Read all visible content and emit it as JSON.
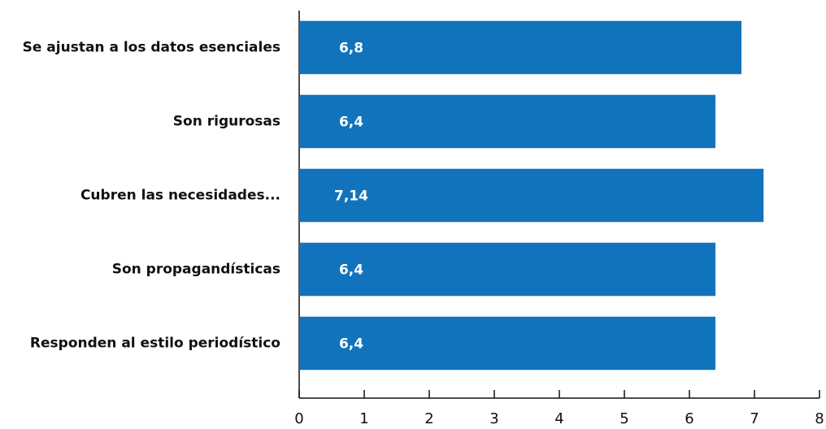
{
  "chart_data": {
    "type": "bar",
    "orientation": "horizontal",
    "categories": [
      "Se ajustan a los datos esenciales",
      "Son rigurosas",
      "Cubren las necesidades...",
      "Son propagandísticas",
      "Responden al estilo periodístico"
    ],
    "values": [
      6.8,
      6.4,
      7.14,
      6.4,
      6.4
    ],
    "value_labels": [
      "6,8",
      "6,4",
      "7,14",
      "6,4",
      "6,4"
    ],
    "color": "#1173bc",
    "xlim": [
      0,
      8
    ],
    "xticks": [
      0,
      1,
      2,
      3,
      4,
      5,
      6,
      7,
      8
    ],
    "grid": false
  }
}
